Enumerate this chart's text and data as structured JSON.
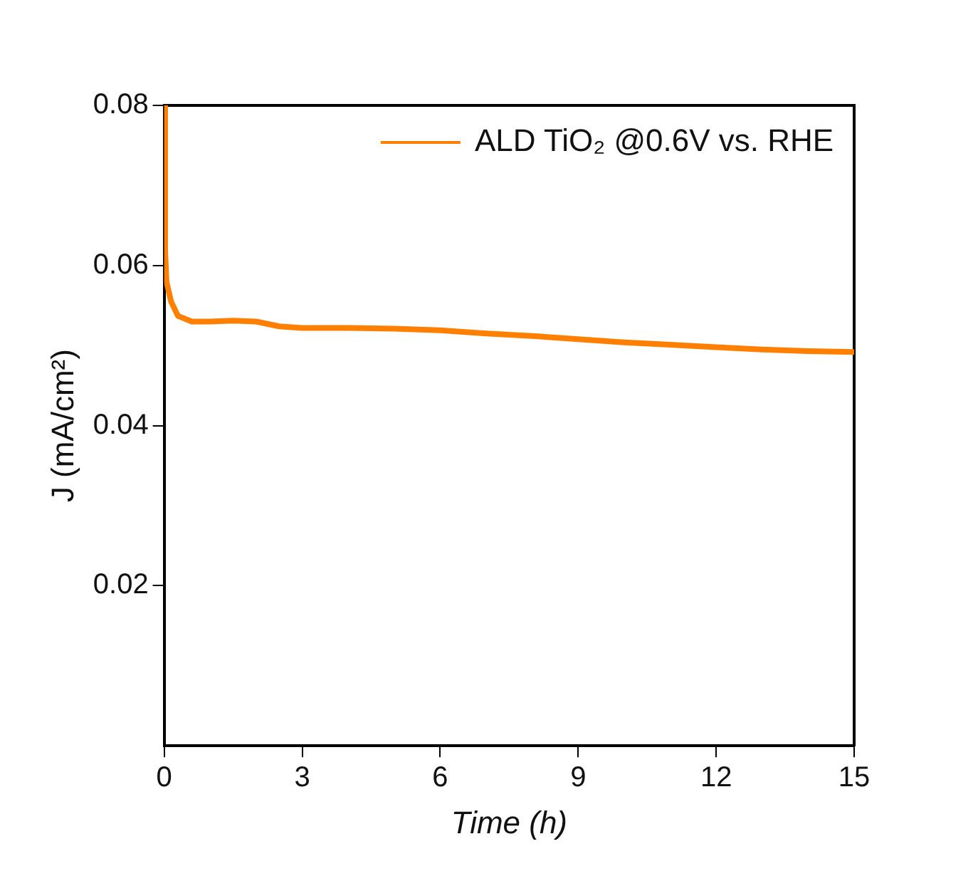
{
  "chart_data": {
    "type": "line",
    "xlabel": "Time (h)",
    "ylabel": "J (mA/cm²)",
    "xlim": [
      0,
      15
    ],
    "xticks": [
      0,
      3,
      6,
      9,
      12,
      15
    ],
    "ylim": [
      0,
      0.08
    ],
    "yticks": [
      0.02,
      0.04,
      0.06,
      0.08
    ],
    "legend": "top right",
    "grid": false,
    "marker": "none",
    "line_style": "solid",
    "series": [
      {
        "name": "ALD TiO₂ @0.6V vs. RHE",
        "color": "#ff8000",
        "x": [
          0,
          0.02,
          0.05,
          0.15,
          0.3,
          0.6,
          1,
          1.5,
          2,
          2.5,
          3,
          4,
          5,
          6,
          7,
          8,
          9,
          10,
          11,
          12,
          13,
          14,
          15
        ],
        "values": [
          0.08,
          0.062,
          0.058,
          0.0555,
          0.0537,
          0.053,
          0.053,
          0.0531,
          0.053,
          0.0524,
          0.0522,
          0.0522,
          0.0521,
          0.0519,
          0.0515,
          0.0512,
          0.0508,
          0.0504,
          0.0501,
          0.0498,
          0.0495,
          0.0493,
          0.0492
        ]
      }
    ]
  }
}
